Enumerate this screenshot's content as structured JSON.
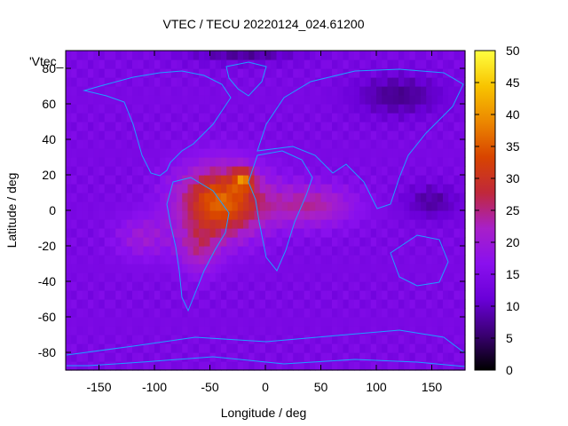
{
  "chart_data": {
    "type": "heatmap",
    "title": "VTEC / TECU 20220124_024.61200",
    "xlabel": "Longitude / deg",
    "ylabel": "Latitude / deg",
    "legend_label": "'Vtec_",
    "xlim": [
      -180,
      180
    ],
    "ylim": [
      -90,
      90
    ],
    "clim": [
      0,
      50
    ],
    "colormap": [
      "#000000",
      "#3a0072",
      "#6a00d8",
      "#8a10ee",
      "#a820c8",
      "#c0283a",
      "#d84400",
      "#ec8800",
      "#f8c400",
      "#ffff40"
    ],
    "x_ticks": [
      "-150",
      "-100",
      "-50",
      "0",
      "50",
      "100",
      "150"
    ],
    "x_tick_values": [
      -150,
      -100,
      -50,
      0,
      50,
      100,
      150
    ],
    "y_ticks": [
      "80",
      "60",
      "40",
      "20",
      "0",
      "-20",
      "-40",
      "-60",
      "-80"
    ],
    "y_tick_values": [
      80,
      60,
      40,
      20,
      0,
      -20,
      -40,
      -60,
      -80
    ],
    "cb_ticks": [
      "50",
      "45",
      "40",
      "35",
      "30",
      "25",
      "20",
      "15",
      "10",
      "5",
      "0"
    ],
    "cb_tick_values": [
      50,
      45,
      40,
      35,
      30,
      25,
      20,
      15,
      10,
      5,
      0
    ],
    "grid_resolution_deg": 5,
    "tec_features": [
      {
        "lon": -40,
        "lat": 5,
        "amp": 22,
        "slon": 38,
        "slat": 20
      },
      {
        "lon": -20,
        "lat": 18,
        "amp": 14,
        "slon": 9,
        "slat": 6
      },
      {
        "lon": -60,
        "lat": -22,
        "amp": 8,
        "slon": 18,
        "slat": 14
      },
      {
        "lon": 40,
        "lat": 3,
        "amp": 10,
        "slon": 40,
        "slat": 12
      },
      {
        "lon": -110,
        "lat": -15,
        "amp": 6,
        "slon": 25,
        "slat": 12
      },
      {
        "lon": 120,
        "lat": 65,
        "amp": -7,
        "slon": 40,
        "slat": 12
      },
      {
        "lon": 150,
        "lat": 5,
        "amp": -6,
        "slon": 25,
        "slat": 10
      },
      {
        "lon": -20,
        "lat": 88,
        "amp": -6,
        "slon": 50,
        "slat": 5
      }
    ],
    "background_tec": 14
  }
}
